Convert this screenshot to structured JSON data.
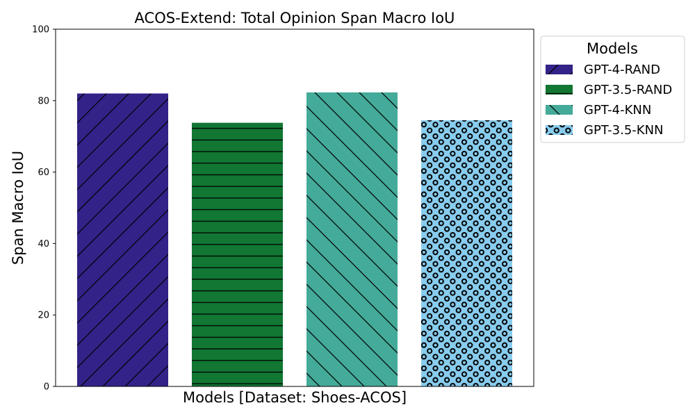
{
  "chart_data": {
    "type": "bar",
    "title": "ACOS-Extend: Total Opinion Span Macro IoU",
    "xlabel": "Models [Dataset: Shoes-ACOS]",
    "ylabel": "Span Macro IoU",
    "ylim": [
      0,
      100
    ],
    "yticks": [
      "0",
      "20",
      "40",
      "60",
      "80",
      "100"
    ],
    "grid": false,
    "legend": {
      "title": "Models",
      "position": "outside-right"
    },
    "series": [
      {
        "name": "GPT-4-RAND",
        "value": 82.0,
        "color": "#332288",
        "hatch": "diagonal-forward"
      },
      {
        "name": "GPT-3.5-RAND",
        "value": 73.8,
        "color": "#117733",
        "hatch": "horizontal"
      },
      {
        "name": "GPT-4-KNN",
        "value": 82.3,
        "color": "#44AA99",
        "hatch": "diagonal-back"
      },
      {
        "name": "GPT-3.5-KNN",
        "value": 74.5,
        "color": "#88CCEE",
        "hatch": "circles"
      }
    ]
  }
}
